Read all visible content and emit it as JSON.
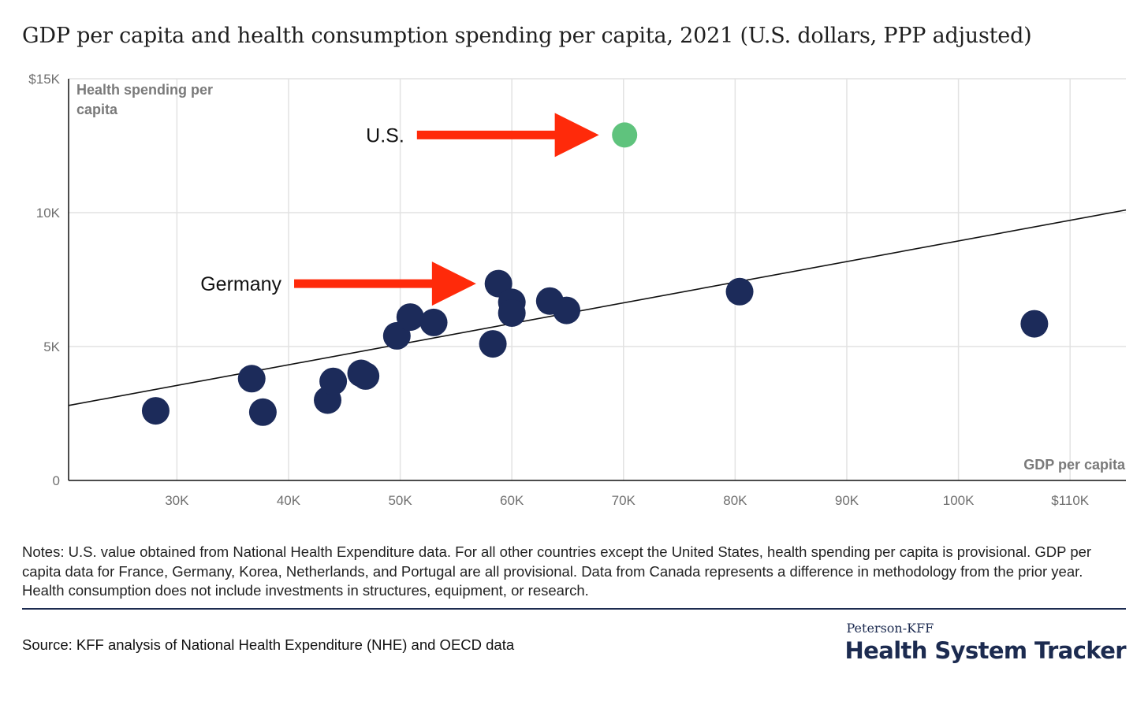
{
  "title": "GDP per capita and health consumption spending per capita, 2021 (U.S. dollars, PPP adjusted)",
  "notes": "Notes: U.S. value obtained from National Health Expenditure data. For all other countries except the United States, health spending per capita is provisional. GDP per capita data for France, Germany, Korea, Netherlands, and Portugal are all provisional. Data from Canada represents a difference in methodology from the prior year. Health consumption does not include investments in structures, equipment, or research.",
  "source": "Source: KFF analysis of National Health Expenditure (NHE) and OECD data",
  "brand": {
    "top": "Peterson-KFF",
    "main": "Health System Tracker"
  },
  "colors": {
    "points": "#1c2b5a",
    "highlight": "#5fc37d",
    "arrow": "#ff2a0a",
    "trend": "#111111",
    "grid": "#e2e2e2"
  },
  "chart_data": {
    "type": "scatter",
    "xlabel": "GDP per capita",
    "ylabel": "Health spending per capita",
    "xlim": [
      20300,
      115000
    ],
    "ylim": [
      0,
      15000
    ],
    "x_ticks": [
      30000,
      40000,
      50000,
      60000,
      70000,
      80000,
      90000,
      100000,
      110000
    ],
    "x_tick_labels": [
      "30K",
      "40K",
      "50K",
      "60K",
      "70K",
      "80K",
      "90K",
      "100K",
      "$110K"
    ],
    "y_ticks": [
      0,
      5000,
      10000,
      15000
    ],
    "y_tick_labels": [
      "0",
      "5K",
      "10K",
      "$15K"
    ],
    "grid": true,
    "series": [
      {
        "points": [
          {
            "x": 28100,
            "y": 2600
          },
          {
            "x": 36700,
            "y": 3800
          },
          {
            "x": 37700,
            "y": 2550
          },
          {
            "x": 43500,
            "y": 3000
          },
          {
            "x": 44000,
            "y": 3700
          },
          {
            "x": 46500,
            "y": 4000
          },
          {
            "x": 46900,
            "y": 3900
          },
          {
            "x": 49700,
            "y": 5400
          },
          {
            "x": 50900,
            "y": 6100
          },
          {
            "x": 53000,
            "y": 5900
          },
          {
            "x": 58300,
            "y": 5100
          },
          {
            "x": 58800,
            "y": 7350
          },
          {
            "x": 60000,
            "y": 6650
          },
          {
            "x": 60000,
            "y": 6250
          },
          {
            "x": 63400,
            "y": 6700
          },
          {
            "x": 64900,
            "y": 6350
          },
          {
            "x": 80400,
            "y": 7050
          },
          {
            "x": 106800,
            "y": 5850
          }
        ]
      },
      {
        "highlight": true,
        "points": [
          {
            "x": 70100,
            "y": 12900
          }
        ]
      }
    ],
    "trendline": {
      "x": [
        20300,
        115000
      ],
      "y": [
        2800,
        10100
      ]
    },
    "annotations": [
      {
        "text": "U.S.",
        "arrow_from": [
          51500,
          12900
        ],
        "arrow_to": [
          67800,
          12900
        ]
      },
      {
        "text": "Germany",
        "arrow_from": [
          40500,
          7350
        ],
        "arrow_to": [
          56800,
          7350
        ]
      }
    ]
  }
}
